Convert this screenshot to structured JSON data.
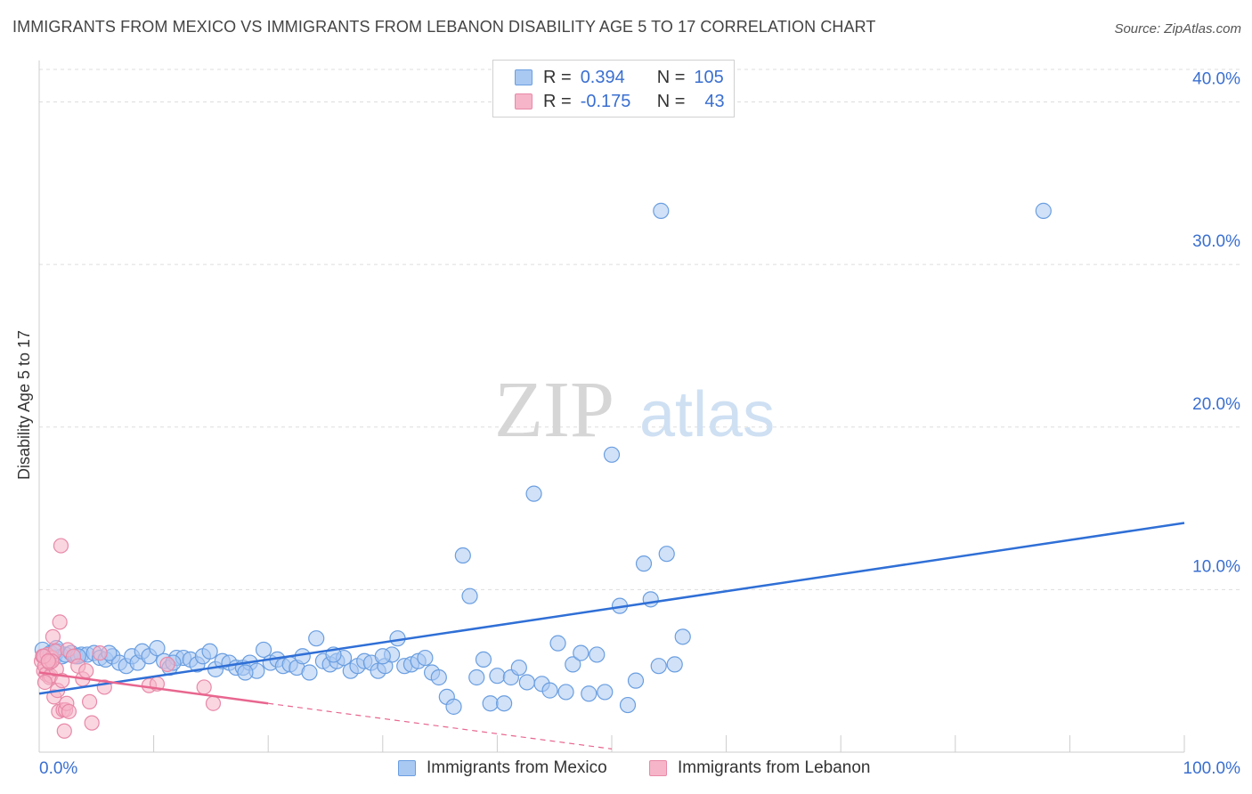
{
  "title": "IMMIGRANTS FROM MEXICO VS IMMIGRANTS FROM LEBANON DISABILITY AGE 5 TO 17 CORRELATION CHART",
  "source": "Source: ZipAtlas.com",
  "watermark": {
    "zip": "ZIP",
    "atlas": "atlas"
  },
  "legend": {
    "rows": [
      {
        "r_label": "R =",
        "r_value": "0.394",
        "n_label": "N =",
        "n_value": "105",
        "color": "#a9c8f2"
      },
      {
        "r_label": "R =",
        "r_value": "-0.175",
        "n_label": "N =",
        "n_value": "43",
        "color": "#f6b5c9"
      }
    ]
  },
  "bottom_legend": [
    "Immigrants from Mexico",
    "Immigrants from Lebanon"
  ],
  "colors": {
    "mexico_fill": "#a9c8f2",
    "mexico_stroke": "#6a9ee0",
    "mexico_line": "#2f6fd6",
    "lebanon_fill": "#f6b5c9",
    "lebanon_stroke": "#e889a8",
    "lebanon_line": "#e8668f",
    "tick_label": "#3a6fd0",
    "grid": "#dddddd"
  },
  "chart_data": {
    "type": "scatter",
    "xlabel": "",
    "ylabel": "Disability Age 5 to 17",
    "xlim": [
      0,
      100
    ],
    "ylim": [
      0,
      42
    ],
    "x_tick_labels": [
      "0.0%",
      "100.0%"
    ],
    "y_ticks": [
      10,
      20,
      30,
      40
    ],
    "y_tick_labels": [
      "10.0%",
      "20.0%",
      "30.0%",
      "40.0%"
    ],
    "grid": true,
    "series": [
      {
        "name": "Immigrants from Mexico",
        "points": [
          [
            0.3,
            6.3
          ],
          [
            0.6,
            5.9
          ],
          [
            1.0,
            6.1
          ],
          [
            1.3,
            5.8
          ],
          [
            1.6,
            6.2
          ],
          [
            2.0,
            5.9
          ],
          [
            2.3,
            6.0
          ],
          [
            2.8,
            6.1
          ],
          [
            3.2,
            5.9
          ],
          [
            3.7,
            6.0
          ],
          [
            4.2,
            6.0
          ],
          [
            4.8,
            6.1
          ],
          [
            5.3,
            5.8
          ],
          [
            5.8,
            5.7
          ],
          [
            6.4,
            5.9
          ],
          [
            7.0,
            5.5
          ],
          [
            7.6,
            5.3
          ],
          [
            8.1,
            5.9
          ],
          [
            8.6,
            5.5
          ],
          [
            9.0,
            6.2
          ],
          [
            9.6,
            5.9
          ],
          [
            10.3,
            6.4
          ],
          [
            10.9,
            5.6
          ],
          [
            11.4,
            5.2
          ],
          [
            12.0,
            5.8
          ],
          [
            12.6,
            5.8
          ],
          [
            13.2,
            5.7
          ],
          [
            13.8,
            5.4
          ],
          [
            14.3,
            5.9
          ],
          [
            14.9,
            6.2
          ],
          [
            15.4,
            5.1
          ],
          [
            16.0,
            5.6
          ],
          [
            16.6,
            5.5
          ],
          [
            17.2,
            5.2
          ],
          [
            17.8,
            5.2
          ],
          [
            18.4,
            5.5
          ],
          [
            19.0,
            5.0
          ],
          [
            19.6,
            6.3
          ],
          [
            20.2,
            5.5
          ],
          [
            20.8,
            5.7
          ],
          [
            21.3,
            5.3
          ],
          [
            21.9,
            5.4
          ],
          [
            22.5,
            5.2
          ],
          [
            23.0,
            5.9
          ],
          [
            23.6,
            4.9
          ],
          [
            24.2,
            7.0
          ],
          [
            24.8,
            5.6
          ],
          [
            25.4,
            5.4
          ],
          [
            26.0,
            5.6
          ],
          [
            26.6,
            5.8
          ],
          [
            27.2,
            5.0
          ],
          [
            27.8,
            5.3
          ],
          [
            28.4,
            5.6
          ],
          [
            29.0,
            5.5
          ],
          [
            29.6,
            5.0
          ],
          [
            30.2,
            5.3
          ],
          [
            30.8,
            6.0
          ],
          [
            31.3,
            7.0
          ],
          [
            31.9,
            5.3
          ],
          [
            32.5,
            5.4
          ],
          [
            33.1,
            5.6
          ],
          [
            33.7,
            5.8
          ],
          [
            34.3,
            4.9
          ],
          [
            34.9,
            4.6
          ],
          [
            35.6,
            3.4
          ],
          [
            36.2,
            2.8
          ],
          [
            37.0,
            12.1
          ],
          [
            37.6,
            9.6
          ],
          [
            38.2,
            4.6
          ],
          [
            38.8,
            5.7
          ],
          [
            39.4,
            3.0
          ],
          [
            40.0,
            4.7
          ],
          [
            40.6,
            3.0
          ],
          [
            41.2,
            4.6
          ],
          [
            41.9,
            5.2
          ],
          [
            42.6,
            4.3
          ],
          [
            43.2,
            15.9
          ],
          [
            43.9,
            4.2
          ],
          [
            44.6,
            3.8
          ],
          [
            45.3,
            6.7
          ],
          [
            46.0,
            3.7
          ],
          [
            46.6,
            5.4
          ],
          [
            47.3,
            6.1
          ],
          [
            48.0,
            3.6
          ],
          [
            48.7,
            6.0
          ],
          [
            49.4,
            3.7
          ],
          [
            50.0,
            18.3
          ],
          [
            50.7,
            9.0
          ],
          [
            51.4,
            2.9
          ],
          [
            52.1,
            4.4
          ],
          [
            52.8,
            11.6
          ],
          [
            53.4,
            9.4
          ],
          [
            54.1,
            5.3
          ],
          [
            54.8,
            12.2
          ],
          [
            55.5,
            5.4
          ],
          [
            56.2,
            7.1
          ],
          [
            54.3,
            33.3
          ],
          [
            87.7,
            33.3
          ],
          [
            1.5,
            6.4
          ],
          [
            3.4,
            5.9
          ],
          [
            6.1,
            6.1
          ],
          [
            11.7,
            5.5
          ],
          [
            18.0,
            4.9
          ],
          [
            25.7,
            6.0
          ],
          [
            30.0,
            5.9
          ]
        ]
      },
      {
        "name": "Immigrants from Lebanon",
        "points": [
          [
            0.2,
            5.6
          ],
          [
            0.3,
            5.9
          ],
          [
            0.4,
            5.0
          ],
          [
            0.5,
            5.3
          ],
          [
            0.6,
            4.8
          ],
          [
            0.7,
            6.0
          ],
          [
            0.8,
            5.6
          ],
          [
            0.9,
            4.6
          ],
          [
            1.0,
            4.7
          ],
          [
            1.1,
            5.8
          ],
          [
            1.2,
            7.1
          ],
          [
            1.3,
            3.4
          ],
          [
            1.4,
            6.2
          ],
          [
            1.5,
            5.1
          ],
          [
            1.6,
            3.8
          ],
          [
            1.7,
            2.5
          ],
          [
            1.8,
            8.0
          ],
          [
            1.9,
            12.7
          ],
          [
            2.0,
            4.4
          ],
          [
            2.1,
            2.6
          ],
          [
            2.2,
            1.3
          ],
          [
            2.3,
            2.6
          ],
          [
            2.4,
            3.0
          ],
          [
            2.5,
            6.3
          ],
          [
            2.6,
            2.5
          ],
          [
            3.0,
            5.9
          ],
          [
            3.4,
            5.3
          ],
          [
            3.8,
            4.5
          ],
          [
            4.1,
            5.0
          ],
          [
            4.4,
            3.1
          ],
          [
            4.6,
            1.8
          ],
          [
            5.3,
            6.1
          ],
          [
            5.7,
            4.0
          ],
          [
            9.6,
            4.1
          ],
          [
            10.3,
            4.2
          ],
          [
            11.2,
            5.4
          ],
          [
            14.4,
            4.0
          ],
          [
            15.2,
            3.0
          ],
          [
            0.5,
            4.3
          ],
          [
            0.9,
            5.5
          ],
          [
            1.1,
            5.6
          ],
          [
            0.4,
            5.9
          ],
          [
            0.8,
            5.6
          ]
        ]
      }
    ],
    "trendlines": [
      {
        "series": "Immigrants from Mexico",
        "x": [
          0,
          100
        ],
        "y": [
          3.6,
          14.1
        ]
      },
      {
        "series": "Immigrants from Lebanon",
        "x": [
          0,
          20
        ],
        "y": [
          4.9,
          3.0
        ],
        "dashed_extension": {
          "x": [
            20,
            50
          ],
          "y": [
            3.0,
            0.2
          ]
        }
      }
    ]
  }
}
